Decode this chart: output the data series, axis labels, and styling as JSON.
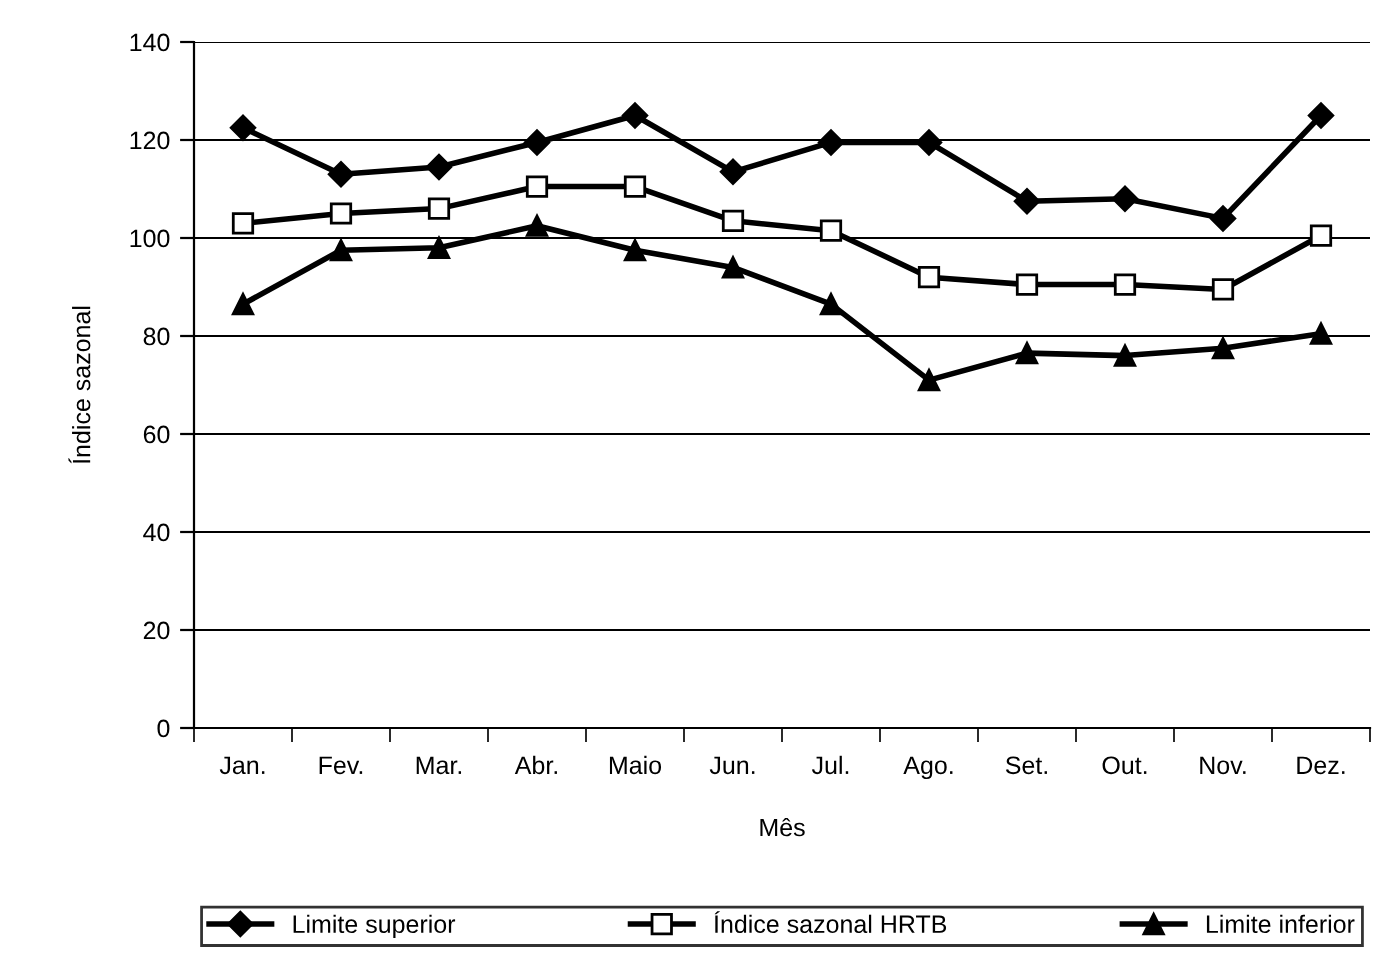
{
  "chart_data": {
    "type": "line",
    "xlabel": "Mês",
    "ylabel": "Índice sazonal",
    "categories": [
      "Jan.",
      "Fev.",
      "Mar.",
      "Abr.",
      "Maio",
      "Jun.",
      "Jul.",
      "Ago.",
      "Set.",
      "Out.",
      "Nov.",
      "Dez."
    ],
    "series": [
      {
        "name": "Limite superior",
        "color": "#000000",
        "marker": "diamond",
        "values": [
          122.5,
          113,
          114.5,
          119.5,
          125,
          113.5,
          119.5,
          119.5,
          107.5,
          108,
          104,
          125
        ]
      },
      {
        "name": "Índice sazonal HRTB",
        "color": "#000000",
        "marker": "square",
        "values": [
          103,
          105,
          106,
          110.5,
          110.5,
          103.5,
          101.5,
          92,
          90.5,
          90.5,
          89.5,
          100.5
        ]
      },
      {
        "name": "Limite inferior",
        "color": "#000000",
        "marker": "triangle",
        "values": [
          86.5,
          97.5,
          98,
          102.5,
          97.5,
          94,
          86.5,
          71,
          76.5,
          76,
          77.5,
          80.5
        ]
      }
    ],
    "ylim": [
      0,
      140
    ],
    "yticks": [
      0,
      20,
      40,
      60,
      80,
      100,
      120,
      140
    ],
    "grid": "y",
    "legend": "bottom",
    "line_style": "solid"
  }
}
